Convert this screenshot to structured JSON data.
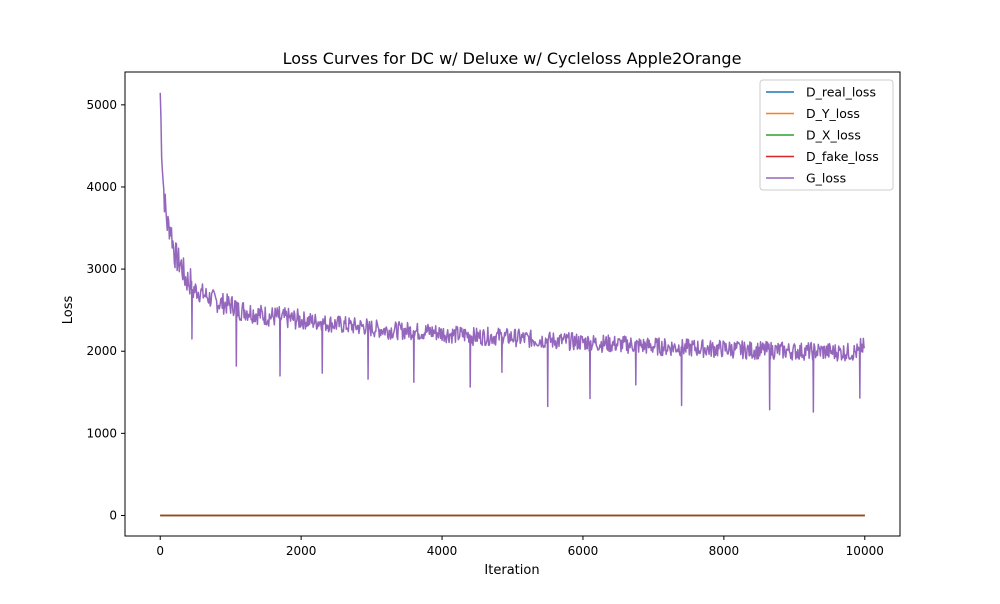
{
  "chart_data": {
    "type": "line",
    "title": "Loss Curves for DC w/ Deluxe w/ Cycleloss Apple2Orange",
    "xlabel": "Iteration",
    "ylabel": "Loss",
    "xlim": [
      -500,
      10500
    ],
    "ylim": [
      -250,
      5400
    ],
    "xticks": [
      0,
      2000,
      4000,
      6000,
      8000,
      10000
    ],
    "yticks": [
      0,
      1000,
      2000,
      3000,
      4000,
      5000
    ],
    "grid": false,
    "legend_position": "upper right",
    "series": [
      {
        "name": "D_real_loss",
        "color": "#1f77b4",
        "x": [
          0,
          10000
        ],
        "values": [
          0.5,
          0.5
        ]
      },
      {
        "name": "D_Y_loss",
        "color": "#ff7f0e",
        "x": [
          0,
          10000
        ],
        "values": [
          0.4,
          0.4
        ]
      },
      {
        "name": "D_X_loss",
        "color": "#2ca02c",
        "x": [
          0,
          10000
        ],
        "values": [
          0.4,
          0.4
        ]
      },
      {
        "name": "D_fake_loss",
        "color": "#d62728",
        "x": [
          0,
          10000
        ],
        "values": [
          0.3,
          0.3
        ]
      },
      {
        "name": "G_loss",
        "color": "#9467bd",
        "x": [
          0,
          20,
          40,
          60,
          80,
          100,
          150,
          200,
          250,
          300,
          350,
          400,
          450,
          500,
          600,
          700,
          800,
          900,
          1000,
          1080,
          1200,
          1400,
          1600,
          1700,
          1800,
          2000,
          2200,
          2300,
          2400,
          2600,
          2800,
          2950,
          3000,
          3200,
          3400,
          3600,
          3800,
          4000,
          4200,
          4400,
          4600,
          4850,
          5000,
          5200,
          5400,
          5500,
          5600,
          5800,
          6000,
          6100,
          6200,
          6400,
          6600,
          6750,
          6800,
          7000,
          7200,
          7400,
          7600,
          7800,
          8000,
          8200,
          8400,
          8650,
          8800,
          9000,
          9200,
          9270,
          9400,
          9600,
          9800,
          9930,
          10000
        ],
        "values": [
          5150,
          4500,
          4100,
          3850,
          3700,
          3550,
          3500,
          3200,
          3100,
          3050,
          2900,
          2850,
          2150,
          2750,
          2700,
          2650,
          2600,
          2580,
          2560,
          1820,
          2500,
          2450,
          2420,
          1700,
          2400,
          2380,
          2360,
          1830,
          2340,
          2320,
          2300,
          1660,
          2280,
          2260,
          2250,
          1720,
          2240,
          2220,
          2200,
          1590,
          2180,
          1850,
          2170,
          2150,
          2140,
          1420,
          2130,
          2120,
          2110,
          1490,
          2100,
          2090,
          2080,
          1590,
          2070,
          2060,
          2050,
          1390,
          2040,
          2030,
          2030,
          2020,
          2010,
          1390,
          2010,
          2000,
          2000,
          1260,
          2000,
          1990,
          1990,
          1430,
          2050
        ]
      }
    ]
  }
}
